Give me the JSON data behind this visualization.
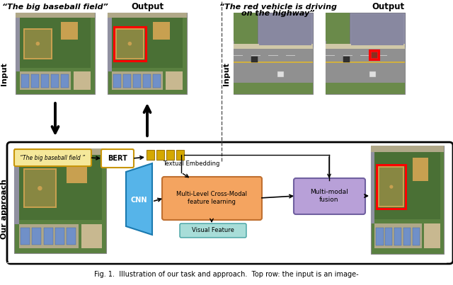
{
  "fig_width": 6.4,
  "fig_height": 4.03,
  "dpi": 100,
  "bg_color": "#ffffff",
  "caption": "Fig. 1.  Illustration of our task and approach.  Top row: the input is an image-",
  "top_left_label": "“The big baseball field”",
  "top_right_label1": "“The red vehicle is driving",
  "top_right_label2": "on the highway”",
  "output_label": "Output",
  "input_label": "Input",
  "our_approach_label": "Our approach",
  "bert_label": "BERT",
  "cnn_label": "CNN",
  "textual_emb_label": "Textual Embedding",
  "visual_feat_label": "Visual Feature",
  "crossmodal_label": "Multi-Level Cross-Modal\nfeature learning",
  "fusion_label": "Multi-modal\nfusion",
  "query_label": "“The big baseball field ”",
  "bert_color": "#d4a800",
  "bert_box_color": "#c8960a",
  "query_box_color": "#f5e89a",
  "cnn_color": "#56b4e9",
  "crossmodal_color": "#f4a460",
  "fusion_color": "#b8a0d8",
  "visual_feat_color": "#a8ddd8",
  "token_color": "#d4a800",
  "arrow_color": "#000000",
  "red_box_color": "#ff0000",
  "divider_color": "#555555",
  "our_approach_box_color": "#000000",
  "img_border_color": "#888888"
}
